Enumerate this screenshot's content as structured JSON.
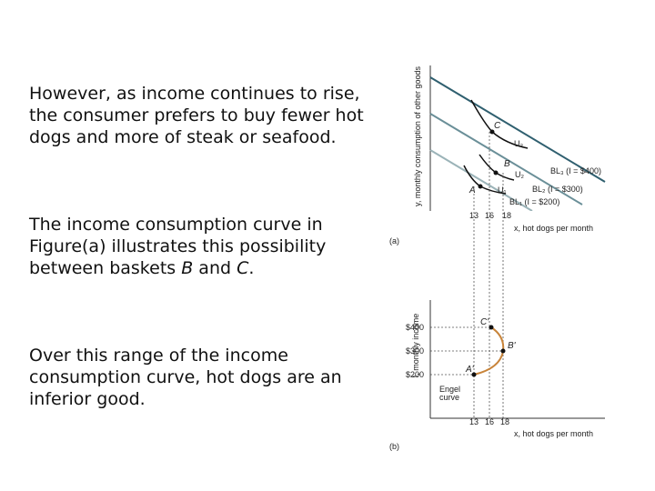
{
  "paragraphs": [
    "However, as income continues to rise, the consumer prefers to buy fewer hot dogs and more of steak or seafood.",
    [
      "The income consumption curve in Figure(a) illustrates this possibility between baskets ",
      "B",
      " and ",
      "C",
      "."
    ],
    "Over this range of the income consumption curve, hot dogs are an inferior good."
  ],
  "figure_a": {
    "y_label": "y, monthly consumption of other goods",
    "x_label": "x, hot dogs per month",
    "panel": "(a)",
    "points": [
      "A",
      "B",
      "C"
    ],
    "curves": [
      "U₁",
      "U₂",
      "U₃"
    ],
    "budget_lines": [
      "BL₁ (I = $200)",
      "BL₂ (I = $300)",
      "BL₃ (I = $400)"
    ],
    "x_ticks": [
      "13",
      "16",
      "18"
    ]
  },
  "figure_b": {
    "y_label": "I, monthly income",
    "x_label": "x, hot dogs per month",
    "panel": "(b)",
    "points": [
      "A'",
      "B'",
      "C'"
    ],
    "y_ticks": [
      "$400",
      "$300",
      "$200"
    ],
    "curve_label": [
      "Engel",
      "curve"
    ],
    "x_ticks": [
      "13",
      "16",
      "18"
    ]
  }
}
